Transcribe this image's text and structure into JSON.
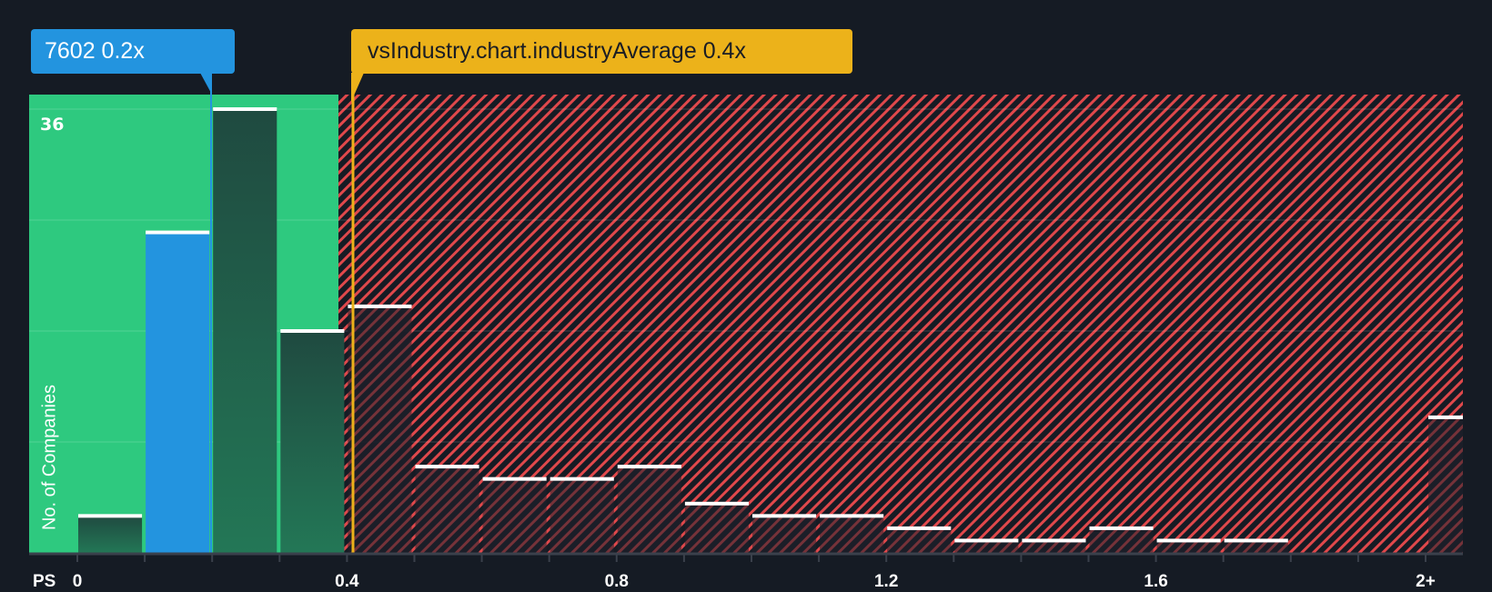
{
  "callouts": {
    "company": {
      "label": "7602 0.2x",
      "color": "#2394df"
    },
    "industry": {
      "label": "vsIndustry.chart.industryAverage 0.4x",
      "color": "#ecb21a"
    }
  },
  "axes": {
    "y_label": "No. of Companies",
    "y_tick_top": "36",
    "x_title": "PS",
    "x_ticks": [
      "0",
      "0.4",
      "0.8",
      "1.2",
      "1.6",
      "2+"
    ]
  },
  "colors": {
    "background": "#151b24",
    "undervalued_zone": "#2ec97f",
    "overvalued_hatch": "#e0484b",
    "company_bar": "#2394df",
    "bar_in_zone": "#1f4d42",
    "bar_outline": "#ffffff"
  },
  "chart_data": {
    "type": "bar",
    "title": "",
    "xlabel": "PS",
    "ylabel": "No. of Companies",
    "categories": [
      "0-0.1",
      "0.1-0.2",
      "0.2-0.3",
      "0.3-0.4",
      "0.4-0.5",
      "0.5-0.6",
      "0.6-0.7",
      "0.7-0.8",
      "0.8-0.9",
      "0.9-1.0",
      "1.0-1.1",
      "1.1-1.2",
      "1.2-1.3",
      "1.3-1.4",
      "1.4-1.5",
      "1.5-1.6",
      "1.6-1.7",
      "1.7-1.8",
      "1.8-1.9",
      "1.9-2.0",
      "2+"
    ],
    "values": [
      3,
      26,
      36,
      18,
      20,
      7,
      6,
      6,
      7,
      4,
      3,
      3,
      2,
      1,
      1,
      2,
      1,
      1,
      0,
      0,
      11
    ],
    "ylim": [
      0,
      36
    ],
    "y_gridlines": [
      0,
      9,
      18,
      27,
      36
    ],
    "x_tick_labels": [
      "0",
      "0.4",
      "0.8",
      "1.2",
      "1.6",
      "2+"
    ],
    "highlight": {
      "company": "7602",
      "value": 0.2,
      "label": "7602 0.2x",
      "bin_index": 1
    },
    "industry_average": {
      "value": 0.4,
      "label": "vsIndustry.chart.industryAverage 0.4x"
    },
    "zones": {
      "undervalued_up_to": 0.4,
      "overvalued_from": 0.4
    },
    "grid": true,
    "legend": null
  }
}
